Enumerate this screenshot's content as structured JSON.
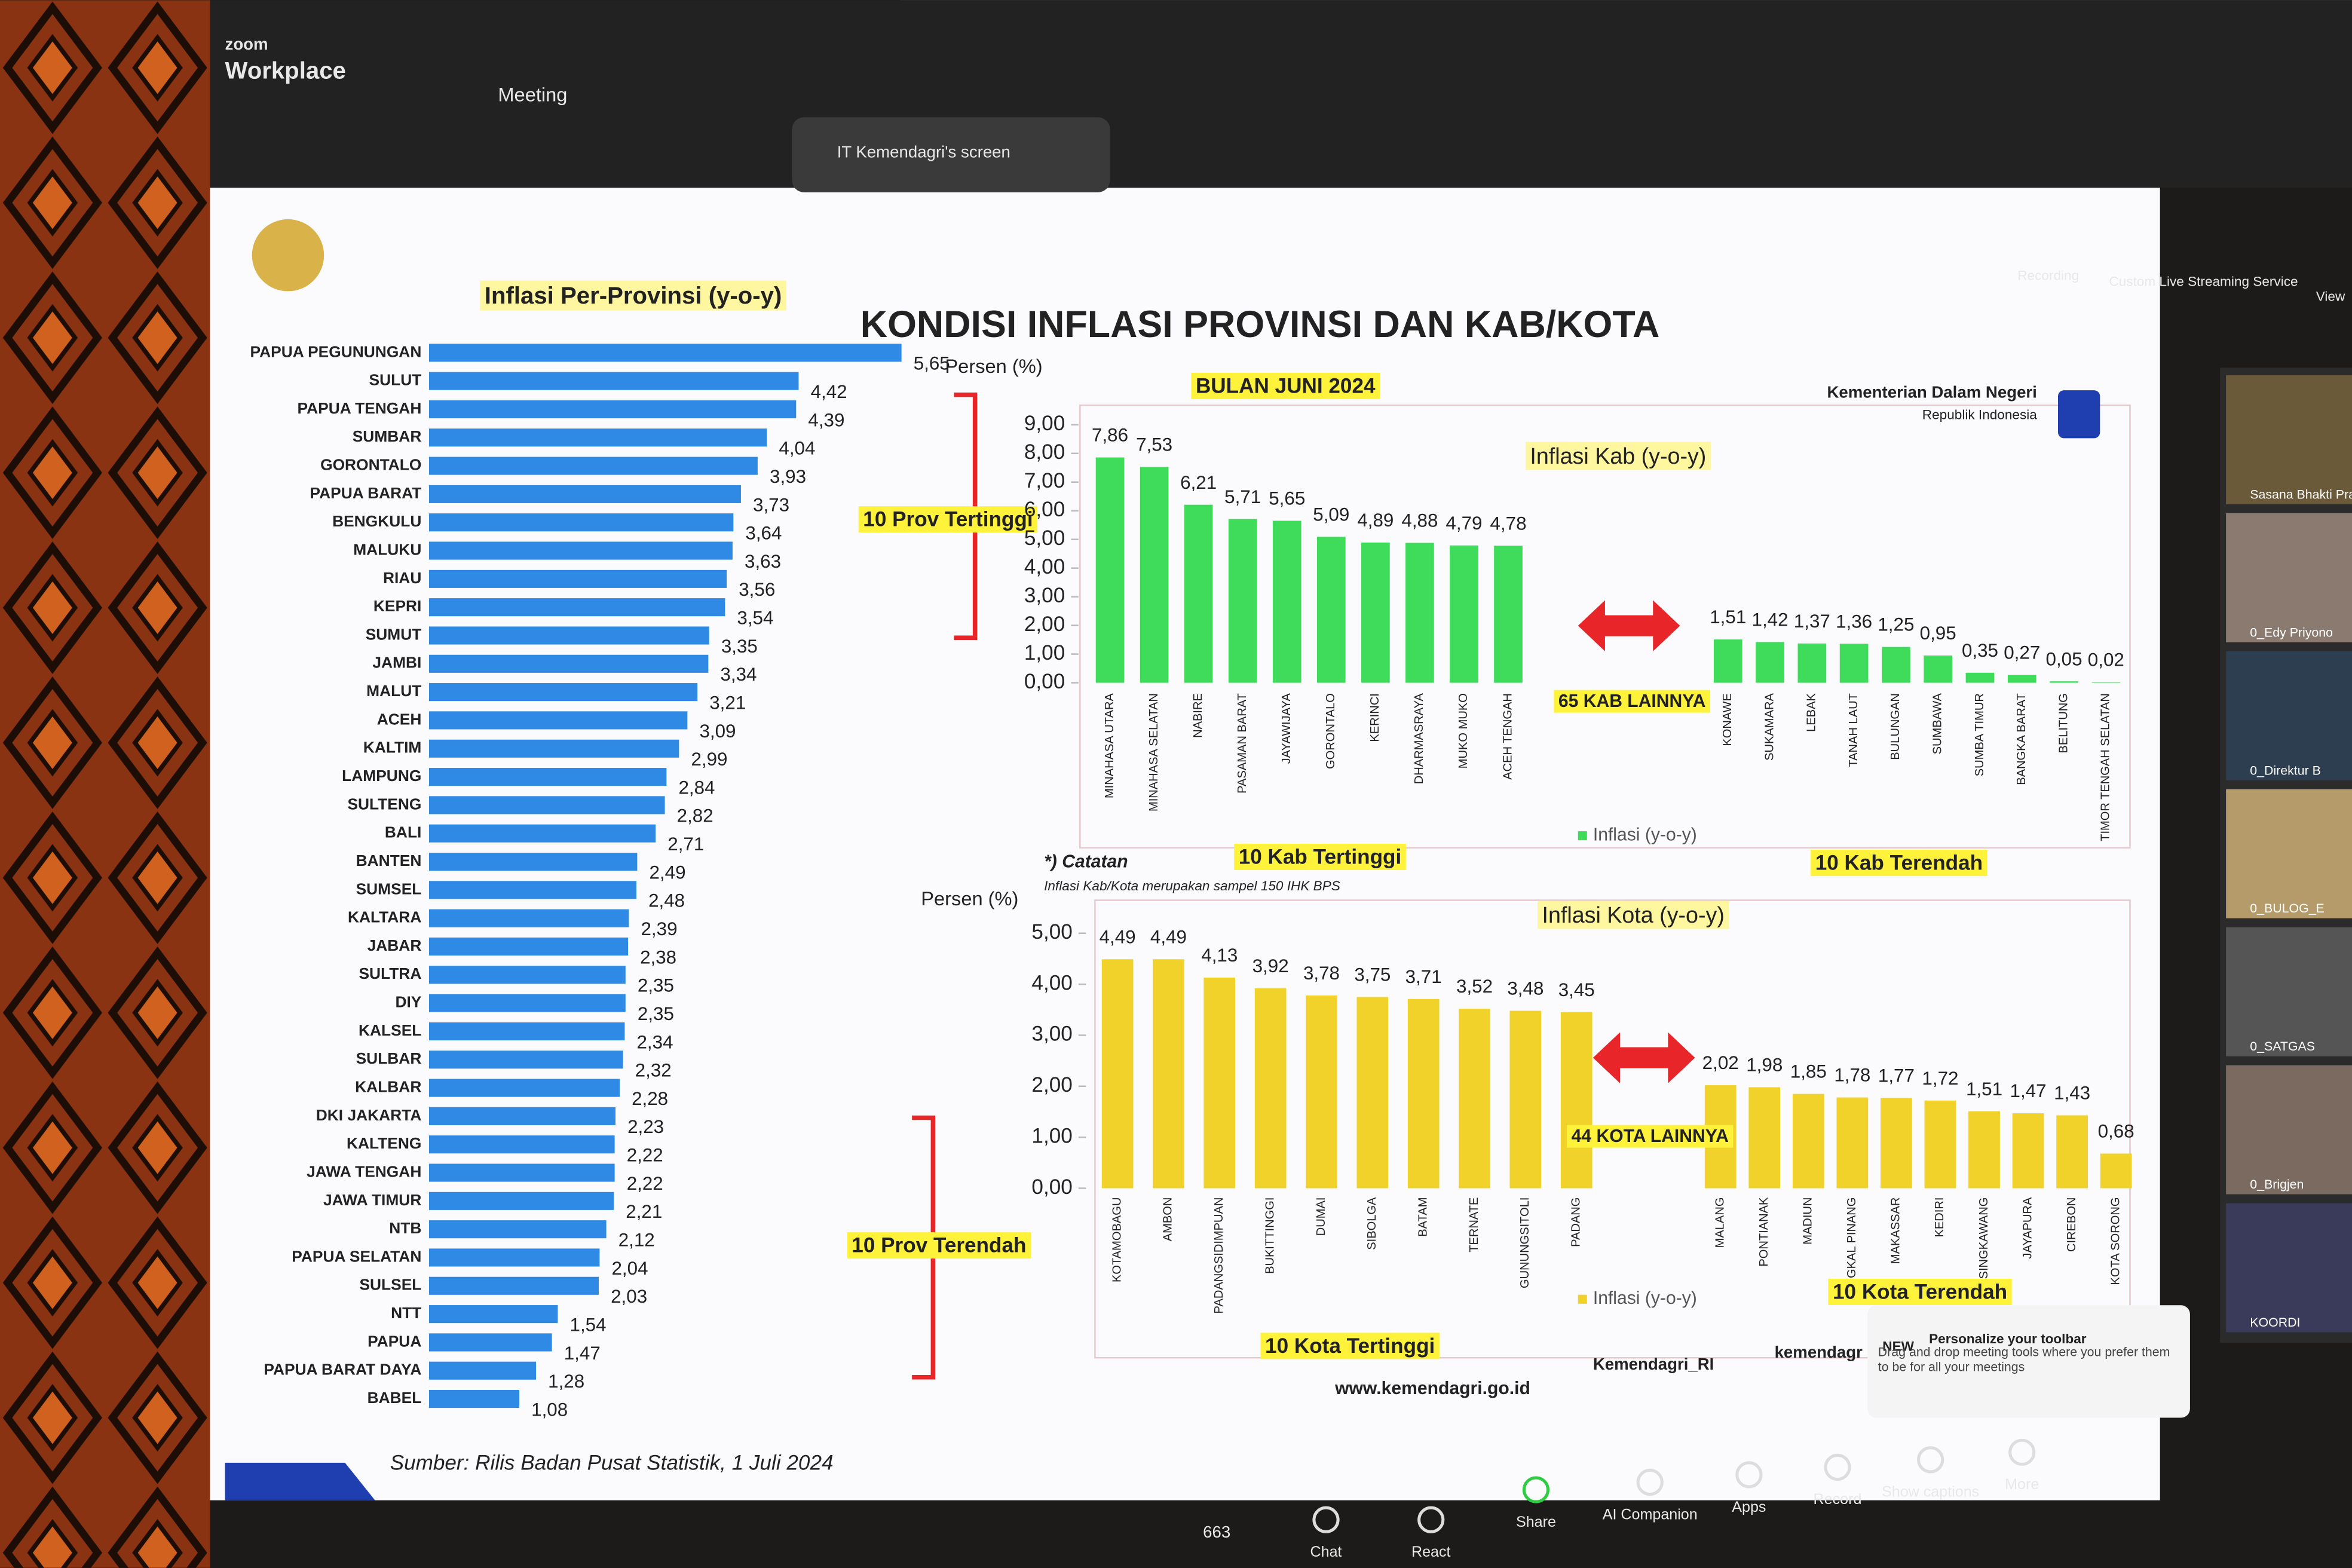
{
  "zoom": {
    "brand": "zoom",
    "product": "Workplace",
    "meeting": "Meeting",
    "share_label": "IT Kemendagri's screen",
    "recording": "Recording",
    "streaming": "Custom Live Streaming Service",
    "view": "View",
    "participants_count": "663",
    "toolbar": [
      "Chat",
      "React",
      "Share",
      "AI Companion",
      "Apps",
      "Record",
      "Show captions",
      "More"
    ],
    "tip": {
      "badge": "NEW",
      "title": "Personalize your toolbar",
      "body": "Drag and drop meeting tools where you prefer them to be for all your meetings"
    },
    "videos": [
      "Sasana Bhakti Pra",
      "0_Edy Priyono",
      "0_Direktur B",
      "0_BULOG_E",
      "0_SATGAS",
      "0_Brigjen",
      "KOORDI"
    ]
  },
  "slide": {
    "title": "KONDISI INFLASI PROVINSI DAN KAB/KOTA",
    "subtitle": "BULAN JUNI 2024",
    "org": "Kementerian Dalam Negeri",
    "org_sub": "Republik Indonesia",
    "note_title": "*) Catatan",
    "note": "Inflasi Kab/Kota merupakan sampel 150 IHK BPS",
    "source": "Sumber: Rilis Badan Pusat Statistik,  1 Juli 2024",
    "website": "www.kemendagri.go.id",
    "facebook": "Kemendagri_RI",
    "twitter": "kemendagr"
  },
  "chart_data": [
    {
      "type": "hbar",
      "title": "Inflasi Per-Provinsi (y-o-y)",
      "color": "#2f8ae6",
      "categories": [
        "PAPUA PEGUNUNGAN",
        "SULUT",
        "PAPUA TENGAH",
        "SUMBAR",
        "GORONTALO",
        "PAPUA BARAT",
        "BENGKULU",
        "MALUKU",
        "RIAU",
        "KEPRI",
        "SUMUT",
        "JAMBI",
        "MALUT",
        "ACEH",
        "KALTIM",
        "LAMPUNG",
        "SULTENG",
        "BALI",
        "BANTEN",
        "SUMSEL",
        "KALTARA",
        "JABAR",
        "SULTRA",
        "DIY",
        "KALSEL",
        "SULBAR",
        "KALBAR",
        "DKI JAKARTA",
        "KALTENG",
        "JAWA TENGAH",
        "JAWA TIMUR",
        "NTB",
        "PAPUA SELATAN",
        "SULSEL",
        "NTT",
        "PAPUA",
        "PAPUA BARAT DAYA",
        "BABEL"
      ],
      "values": [
        5.65,
        4.42,
        4.39,
        4.04,
        3.93,
        3.73,
        3.64,
        3.63,
        3.56,
        3.54,
        3.35,
        3.34,
        3.21,
        3.09,
        2.99,
        2.84,
        2.82,
        2.71,
        2.49,
        2.48,
        2.39,
        2.38,
        2.35,
        2.35,
        2.34,
        2.32,
        2.28,
        2.23,
        2.22,
        2.22,
        2.21,
        2.12,
        2.04,
        2.03,
        1.54,
        1.47,
        1.28,
        1.08
      ],
      "value_labels": [
        "5,65",
        "4,42",
        "4,39",
        "4,04",
        "3,93",
        "3,73",
        "3,64",
        "3,63",
        "3,56",
        "3,54",
        "3,35",
        "3,34",
        "3,21",
        "3,09",
        "2,99",
        "2,84",
        "2,82",
        "2,71",
        "2,49",
        "2,48",
        "2,39",
        "2,38",
        "2,35",
        "2,35",
        "2,34",
        "2,32",
        "2,28",
        "2,23",
        "2,22",
        "2,22",
        "2,21",
        "2,12",
        "2,04",
        "2,03",
        "1,54",
        "1,47",
        "1,28",
        "1,08"
      ],
      "annotations": [
        "10 Prov Tertinggi",
        "10 Prov Terendah"
      ]
    },
    {
      "type": "bar",
      "title": "Inflasi Kab (y-o-y)",
      "y_label": "Persen (%)",
      "categories": [
        "MINAHASA UTARA",
        "MINAHASA SELATAN",
        "NABIRE",
        "PASAMAN BARAT",
        "JAYAWIJAYA",
        "GORONTALO",
        "KERINCI",
        "DHARMASRAYA",
        "MUKO MUKO",
        "ACEH TENGAH",
        "KONAWE",
        "SUKAMARA",
        "LEBAK",
        "TANAH LAUT",
        "BULUNGAN",
        "SUMBAWA",
        "SUMBA TIMUR",
        "BANGKA BARAT",
        "BELITUNG",
        "TIMOR TENGAH SELATAN"
      ],
      "series": [
        {
          "name": "Inflasi (y-o-y)",
          "color": "#3fdc5c",
          "values": [
            7.86,
            7.53,
            6.21,
            5.71,
            5.65,
            5.09,
            4.89,
            4.88,
            4.79,
            4.78,
            1.51,
            1.42,
            1.37,
            1.36,
            1.25,
            0.95,
            0.35,
            0.27,
            0.05,
            0.02
          ],
          "value_labels": [
            "7,86",
            "7,53",
            "6,21",
            "5,71",
            "5,65",
            "5,09",
            "4,89",
            "4,88",
            "4,79",
            "4,78",
            "1,51",
            "1,42",
            "1,37",
            "1,36",
            "1,25",
            "0,95",
            "0,35",
            "0,27",
            "0,05",
            "0,02"
          ]
        }
      ],
      "ylim": [
        0,
        9
      ],
      "yticks": [
        {
          "value": 0,
          "label": "0,00"
        },
        {
          "value": 1,
          "label": "1,00"
        },
        {
          "value": 2,
          "label": "2,00"
        },
        {
          "value": 3,
          "label": "3,00"
        },
        {
          "value": 4,
          "label": "4,00"
        },
        {
          "value": 5,
          "label": "5,00"
        },
        {
          "value": 6,
          "label": "6,00"
        },
        {
          "value": 7,
          "label": "7,00"
        },
        {
          "value": 8,
          "label": "8,00"
        },
        {
          "value": 9,
          "label": "9,00"
        }
      ],
      "annotations": [
        "10 Kab Tertinggi",
        "10 Kab Terendah",
        "65 KAB LAINNYA"
      ]
    },
    {
      "type": "bar",
      "title": "Inflasi Kota (y-o-y)",
      "y_label": "Persen (%)",
      "categories": [
        "KOTAMOBAGU",
        "AMBON",
        "PADANGSIDIMPUAN",
        "BUKITTINGGI",
        "DUMAI",
        "SIBOLGA",
        "BATAM",
        "TERNATE",
        "GUNUNGSITOLI",
        "PADANG",
        "MALANG",
        "PONTIANAK",
        "MADIUN",
        "PANGKAL PINANG",
        "MAKASSAR",
        "KEDIRI",
        "SINGKAWANG",
        "JAYAPURA",
        "CIREBON",
        "KOTA SORONG"
      ],
      "series": [
        {
          "name": "Inflasi (y-o-y)",
          "color": "#f0d22a",
          "values": [
            4.49,
            4.49,
            4.13,
            3.92,
            3.78,
            3.75,
            3.71,
            3.52,
            3.48,
            3.45,
            2.02,
            1.98,
            1.85,
            1.78,
            1.77,
            1.72,
            1.51,
            1.47,
            1.43,
            0.68
          ],
          "value_labels": [
            "4,49",
            "4,49",
            "4,13",
            "3,92",
            "3,78",
            "3,75",
            "3,71",
            "3,52",
            "3,48",
            "3,45",
            "2,02",
            "1,98",
            "1,85",
            "1,78",
            "1,77",
            "1,72",
            "1,51",
            "1,47",
            "1,43",
            "0,68"
          ]
        }
      ],
      "ylim": [
        0,
        5
      ],
      "yticks": [
        {
          "value": 0,
          "label": "0,00"
        },
        {
          "value": 1,
          "label": "1,00"
        },
        {
          "value": 2,
          "label": "2,00"
        },
        {
          "value": 3,
          "label": "3,00"
        },
        {
          "value": 4,
          "label": "4,00"
        },
        {
          "value": 5,
          "label": "5,00"
        }
      ],
      "annotations": [
        "10 Kota Tertinggi",
        "10 Kota Terendah",
        "44 KOTA LAINNYA"
      ]
    }
  ]
}
